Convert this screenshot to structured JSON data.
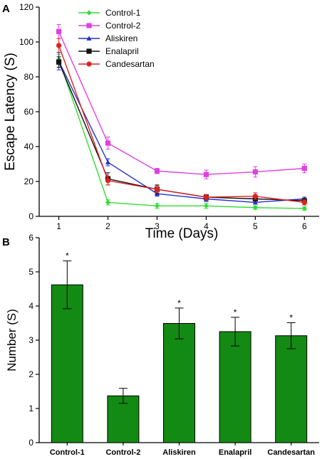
{
  "panels": [
    {
      "label": "A"
    },
    {
      "label": "B"
    }
  ],
  "chart_data": [
    {
      "type": "line",
      "title": "",
      "xlabel": "Time (Days)",
      "ylabel": "Escape Latency (S)",
      "x": [
        1,
        2,
        3,
        4,
        5,
        6
      ],
      "xlim": [
        0.6,
        6.3
      ],
      "ylim": [
        0,
        120
      ],
      "yticks": [
        0,
        20,
        40,
        60,
        80,
        100,
        120
      ],
      "legend_position": "top-center",
      "series": [
        {
          "name": "Control-1",
          "color": "#33dd33",
          "marker": "diamond",
          "values": [
            90,
            8,
            6,
            6,
            5,
            4.5
          ],
          "errors": [
            3,
            1.5,
            1.5,
            1.5,
            1,
            1
          ]
        },
        {
          "name": "Control-2",
          "color": "#e040e0",
          "marker": "square",
          "values": [
            106,
            42,
            26,
            24,
            25.5,
            27.5
          ],
          "errors": [
            4,
            3.5,
            1.5,
            2.5,
            3,
            2.5
          ]
        },
        {
          "name": "Aliskiren",
          "color": "#2233cc",
          "marker": "triangle",
          "values": [
            89,
            31,
            13,
            10,
            8,
            10
          ],
          "errors": [
            5,
            2,
            1.5,
            1.5,
            1,
            1
          ]
        },
        {
          "name": "Enalapril",
          "color": "#111111",
          "marker": "square",
          "values": [
            88.5,
            21.5,
            15.5,
            11,
            10,
            9
          ],
          "errors": [
            3,
            3.5,
            2.5,
            1.5,
            1,
            1
          ]
        },
        {
          "name": "Candesartan",
          "color": "#dd2222",
          "marker": "circle",
          "values": [
            98,
            20.5,
            15.5,
            11,
            11.5,
            8
          ],
          "errors": [
            4,
            2.5,
            2,
            1.5,
            2,
            1.5
          ]
        }
      ]
    },
    {
      "type": "bar",
      "title": "",
      "xlabel": "",
      "ylabel": "Number (S)",
      "categories": [
        "Control-1",
        "Control-2",
        "Aliskiren",
        "Enalapril",
        "Candesartan"
      ],
      "values": [
        4.62,
        1.37,
        3.49,
        3.25,
        3.13
      ],
      "errors": [
        0.7,
        0.22,
        0.45,
        0.42,
        0.38
      ],
      "significance": [
        "*",
        "",
        "*",
        "*",
        "*"
      ],
      "bar_color": "#138a13",
      "ylim": [
        0,
        6
      ],
      "yticks": [
        0,
        1,
        2,
        3,
        4,
        5,
        6
      ]
    }
  ]
}
